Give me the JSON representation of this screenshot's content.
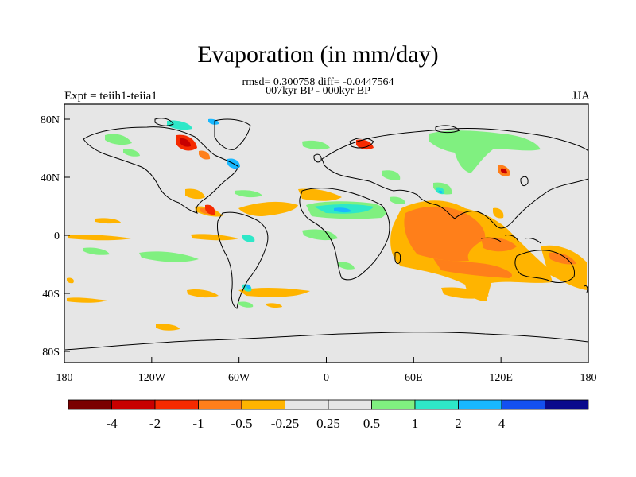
{
  "title": "Evaporation (in mm/day)",
  "stats_line": "rmsd= 0.300758 diff= -0.0447564",
  "period_line": "007kyr BP - 000kyr BP",
  "left_label": "Expt = teiih1-teiia1",
  "right_label": "JJA",
  "x_ticks": [
    "180",
    "120W",
    "60W",
    "0",
    "60E",
    "120E",
    "180"
  ],
  "y_ticks": [
    "80N",
    "40N",
    "0",
    "40S",
    "80S"
  ],
  "colorbar": {
    "colors": [
      "#7a0000",
      "#c80000",
      "#f52a00",
      "#ff7f1a",
      "#ffb400",
      "#e6e6e6",
      "#e6e6e6",
      "#80f080",
      "#2ee8c8",
      "#18b8ff",
      "#1450f0",
      "#0a0a8c"
    ],
    "labels": [
      "-4",
      "-2",
      "-1",
      "-0.5",
      "-0.25",
      "0.25",
      "0.5",
      "1",
      "2",
      "4"
    ]
  }
}
